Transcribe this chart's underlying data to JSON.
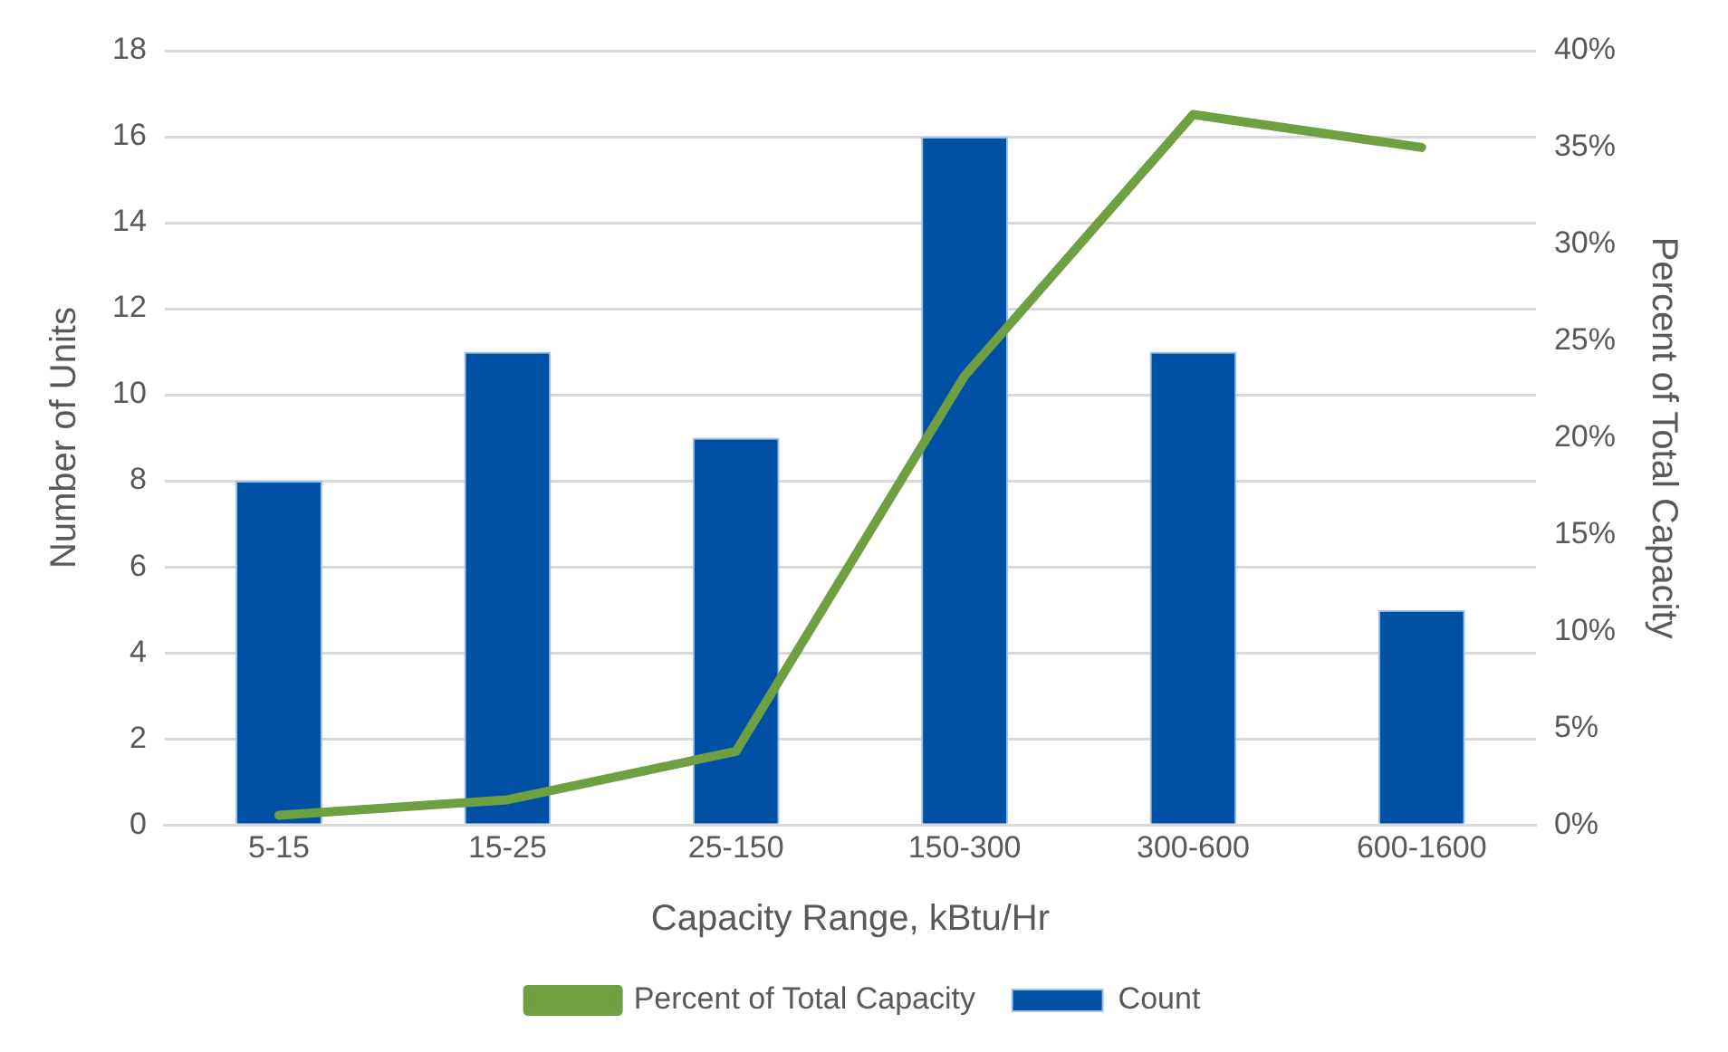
{
  "chart_data": {
    "type": "bar",
    "xlabel": "Capacity Range, kBtu/Hr",
    "ylabel": "Number of Units",
    "y2label": "Percent of Total Capacity",
    "categories": [
      "5-15",
      "15-25",
      "25-150",
      "150-300",
      "300-600",
      "600-1600"
    ],
    "series": [
      {
        "name": "Count",
        "color": "#0051a5",
        "values": [
          8,
          11,
          9,
          16,
          11,
          5
        ]
      },
      {
        "name": "Percent of Total Capacity",
        "type": "line",
        "axis": "y2",
        "color": "#6e9f40",
        "values": [
          0.5,
          1.3,
          3.8,
          23.2,
          36.7,
          35.0
        ]
      }
    ],
    "ylim": [
      0,
      18
    ],
    "yticks": [
      0,
      2,
      4,
      6,
      8,
      10,
      12,
      14,
      16,
      18
    ],
    "y2lim": [
      0,
      40
    ],
    "y2ticks": [
      {
        "value": 0,
        "label": "0%"
      },
      {
        "value": 5,
        "label": "5%"
      },
      {
        "value": 10,
        "label": "10%"
      },
      {
        "value": 15,
        "label": "15%"
      },
      {
        "value": 20,
        "label": "20%"
      },
      {
        "value": 25,
        "label": "25%"
      },
      {
        "value": 30,
        "label": "30%"
      },
      {
        "value": 35,
        "label": "35%"
      },
      {
        "value": 40,
        "label": "40%"
      }
    ],
    "grid": "y",
    "legend": "bottom",
    "marker": "none"
  }
}
